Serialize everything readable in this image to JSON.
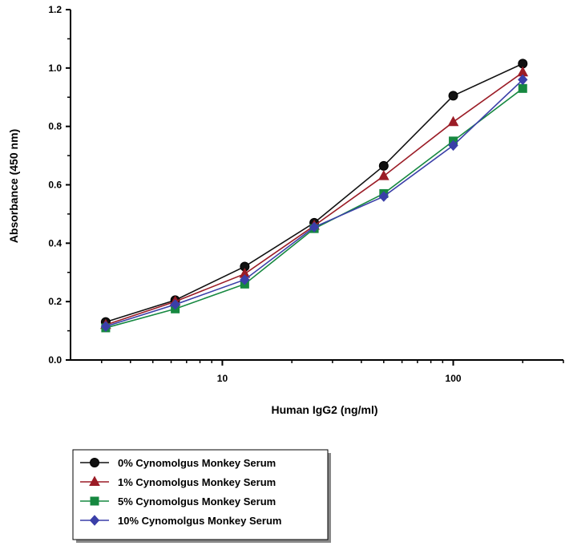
{
  "chart_data": {
    "type": "line",
    "title": "",
    "xlabel": "Human IgG2 (ng/ml)",
    "ylabel": "Absorbance (450 nm)",
    "xscale": "log",
    "xlim": [
      2.2,
      300
    ],
    "ylim": [
      0,
      1.2
    ],
    "x_ticks": [
      10,
      100
    ],
    "x_tick_labels": [
      "10",
      "100"
    ],
    "y_ticks": [
      0.0,
      0.2,
      0.4,
      0.6,
      0.8,
      1.0,
      1.2
    ],
    "y_tick_labels": [
      "0.0",
      "0.2",
      "0.4",
      "0.6",
      "0.8",
      "1.0",
      "1.2"
    ],
    "grid": false,
    "legend_position": "bottom-left",
    "x": [
      3.125,
      6.25,
      12.5,
      25,
      50,
      100,
      200
    ],
    "series": [
      {
        "name": "0% Cynomolgus Monkey Serum",
        "color": "#111111",
        "marker": "circle",
        "values": [
          0.13,
          0.205,
          0.32,
          0.47,
          0.665,
          0.905,
          1.015
        ]
      },
      {
        "name": "1% Cynomolgus Monkey Serum",
        "color": "#9b1c26",
        "marker": "triangle",
        "values": [
          0.12,
          0.2,
          0.295,
          0.46,
          0.63,
          0.815,
          0.985
        ]
      },
      {
        "name": "5% Cynomolgus Monkey Serum",
        "color": "#168840",
        "marker": "square",
        "values": [
          0.11,
          0.175,
          0.26,
          0.45,
          0.57,
          0.75,
          0.93
        ]
      },
      {
        "name": "10% Cynomolgus Monkey Serum",
        "color": "#3a3fa8",
        "marker": "diamond",
        "values": [
          0.115,
          0.19,
          0.275,
          0.455,
          0.56,
          0.735,
          0.96
        ]
      }
    ]
  }
}
